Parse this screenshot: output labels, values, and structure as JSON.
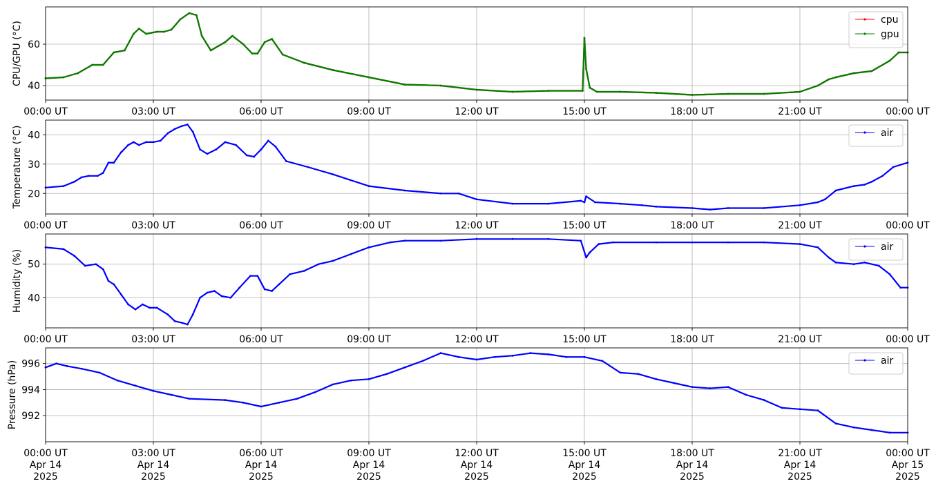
{
  "chart_data": [
    {
      "type": "line",
      "ylabel": "CPU/GPU (°C)",
      "ylim": [
        33,
        78
      ],
      "yticks": [
        40,
        60
      ],
      "x_unit": "hours",
      "xlim": [
        0,
        24
      ],
      "xticks": [
        "00:00 UT",
        "03:00 UT",
        "06:00 UT",
        "09:00 UT",
        "12:00 UT",
        "15:00 UT",
        "18:00 UT",
        "21:00 UT",
        "00:00 UT"
      ],
      "grid": true,
      "legend": "top-right",
      "series": [
        {
          "name": "cpu",
          "color": "#ff0000",
          "x": [
            0,
            0.5,
            0.9,
            1.3,
            1.6,
            1.9,
            2.2,
            2.45,
            2.6,
            2.8,
            3.1,
            3.3,
            3.5,
            3.75,
            4.0,
            4.2,
            4.35,
            4.6,
            5.0,
            5.2,
            5.5,
            5.75,
            5.9,
            6.1,
            6.3,
            6.6,
            7.2,
            8.0,
            9.0,
            10.0,
            11.0,
            12.0,
            13.0,
            14.0,
            14.95,
            15.0,
            15.05,
            15.15,
            15.35,
            16.0,
            17.0,
            18.0,
            19.0,
            20.0,
            21.0,
            21.5,
            21.8,
            22.0,
            22.5,
            23.0,
            23.5,
            23.75,
            24.0
          ],
          "y": [
            43.5,
            44,
            46,
            50,
            50,
            56,
            57,
            65,
            67.5,
            65,
            66,
            66,
            67,
            72,
            75,
            74,
            64,
            57,
            61,
            64,
            60,
            55.5,
            55.5,
            61,
            62.5,
            55,
            51,
            47.5,
            44,
            40.5,
            40,
            38,
            37,
            37.5,
            37.5,
            63,
            48,
            39,
            37,
            37,
            36.5,
            35.5,
            36,
            36,
            37,
            40,
            43,
            44,
            46,
            47,
            52,
            56,
            56
          ]
        },
        {
          "name": "gpu",
          "color": "#008000",
          "x": [
            0,
            0.5,
            0.9,
            1.3,
            1.6,
            1.9,
            2.2,
            2.45,
            2.6,
            2.8,
            3.1,
            3.3,
            3.5,
            3.75,
            4.0,
            4.2,
            4.35,
            4.6,
            5.0,
            5.2,
            5.5,
            5.75,
            5.9,
            6.1,
            6.3,
            6.6,
            7.2,
            8.0,
            9.0,
            10.0,
            11.0,
            12.0,
            13.0,
            14.0,
            14.95,
            15.0,
            15.05,
            15.15,
            15.35,
            16.0,
            17.0,
            18.0,
            19.0,
            20.0,
            21.0,
            21.5,
            21.8,
            22.0,
            22.5,
            23.0,
            23.5,
            23.75,
            24.0
          ],
          "y": [
            43.5,
            44,
            46,
            50,
            50,
            56,
            57,
            65,
            67.5,
            65,
            66,
            66,
            67,
            72,
            75,
            74,
            64,
            57,
            61,
            64,
            60,
            55.5,
            55.5,
            61,
            62.5,
            55,
            51,
            47.5,
            44,
            40.5,
            40,
            38,
            37,
            37.5,
            37.5,
            63,
            48,
            39,
            37,
            37,
            36.5,
            35.5,
            36,
            36,
            37,
            40,
            43,
            44,
            46,
            47,
            52,
            56,
            56
          ]
        }
      ]
    },
    {
      "type": "line",
      "ylabel": "Temperature (°C)",
      "ylim": [
        13,
        45
      ],
      "yticks": [
        20,
        30,
        40
      ],
      "x_unit": "hours",
      "xlim": [
        0,
        24
      ],
      "xticks": [
        "00:00 UT",
        "03:00 UT",
        "06:00 UT",
        "09:00 UT",
        "12:00 UT",
        "15:00 UT",
        "18:00 UT",
        "21:00 UT",
        "00:00 UT"
      ],
      "grid": true,
      "legend": "top-right",
      "series": [
        {
          "name": "air",
          "color": "#0000ff",
          "x": [
            0,
            0.5,
            0.8,
            1.0,
            1.2,
            1.45,
            1.6,
            1.75,
            1.9,
            2.1,
            2.3,
            2.45,
            2.6,
            2.8,
            3.0,
            3.2,
            3.4,
            3.6,
            3.8,
            3.95,
            4.1,
            4.3,
            4.5,
            4.75,
            5.0,
            5.3,
            5.6,
            5.8,
            6.0,
            6.2,
            6.4,
            6.7,
            7.3,
            8.0,
            9.0,
            10.0,
            11.0,
            11.5,
            12.0,
            13.0,
            14.0,
            14.9,
            15.0,
            15.05,
            15.3,
            16.0,
            16.6,
            17.0,
            18.0,
            18.5,
            19.0,
            20.0,
            21.0,
            21.5,
            21.7,
            22.0,
            22.5,
            22.8,
            23.0,
            23.3,
            23.6,
            24.0
          ],
          "y": [
            22,
            22.5,
            24,
            25.5,
            26,
            26,
            27,
            30.5,
            30.5,
            34,
            36.5,
            37.5,
            36.5,
            37.5,
            37.5,
            38,
            40.5,
            42,
            43,
            43.5,
            41,
            35,
            33.5,
            35,
            37.5,
            36.5,
            33,
            32.5,
            35,
            38,
            36,
            31,
            29,
            26.5,
            22.5,
            21,
            20,
            20,
            18,
            16.5,
            16.5,
            17.5,
            17,
            19,
            17,
            16.5,
            16,
            15.5,
            15,
            14.5,
            15,
            15,
            16,
            17,
            18,
            21,
            22.5,
            23,
            24,
            26,
            29,
            30.5
          ]
        }
      ]
    },
    {
      "type": "line",
      "ylabel": "Humidity (%)",
      "ylim": [
        31,
        59
      ],
      "yticks": [
        40,
        50
      ],
      "x_unit": "hours",
      "xlim": [
        0,
        24
      ],
      "xticks": [
        "00:00 UT",
        "03:00 UT",
        "06:00 UT",
        "09:00 UT",
        "12:00 UT",
        "15:00 UT",
        "18:00 UT",
        "21:00 UT",
        "00:00 UT"
      ],
      "grid": true,
      "legend": "top-right",
      "series": [
        {
          "name": "air",
          "color": "#0000ff",
          "x": [
            0,
            0.5,
            0.8,
            1.1,
            1.4,
            1.6,
            1.75,
            1.9,
            2.1,
            2.3,
            2.5,
            2.7,
            2.9,
            3.1,
            3.4,
            3.6,
            3.8,
            3.95,
            4.1,
            4.3,
            4.5,
            4.7,
            4.9,
            5.15,
            5.4,
            5.7,
            5.9,
            6.1,
            6.3,
            6.5,
            6.8,
            7.2,
            7.6,
            8.0,
            8.5,
            9.0,
            9.6,
            10.0,
            11.0,
            12.0,
            13.0,
            14.0,
            14.9,
            15.05,
            15.15,
            15.4,
            15.8,
            17.0,
            18.0,
            19.0,
            20.0,
            21.0,
            21.5,
            21.8,
            22.0,
            22.5,
            22.8,
            23.2,
            23.5,
            23.8,
            24.0
          ],
          "y": [
            55,
            54.5,
            52.5,
            49.5,
            50,
            48.5,
            45,
            44,
            41,
            38,
            36.5,
            38,
            37,
            37,
            35,
            33,
            32.5,
            32,
            35,
            40,
            41.5,
            42,
            40.5,
            40,
            43,
            46.5,
            46.5,
            42.5,
            42,
            44,
            47,
            48,
            50,
            51,
            53,
            55,
            56.5,
            57,
            57,
            57.5,
            57.5,
            57.5,
            57,
            52,
            53.5,
            56,
            56.5,
            56.5,
            56.5,
            56.5,
            56.5,
            56,
            55,
            52,
            50.5,
            50,
            50.5,
            49.5,
            47,
            43,
            43
          ]
        }
      ]
    },
    {
      "type": "line",
      "ylabel": "Pressure (hPa)",
      "ylim": [
        990,
        997.2
      ],
      "yticks": [
        992,
        994,
        996
      ],
      "x_unit": "hours",
      "xlim": [
        0,
        24
      ],
      "xticks": [
        [
          "00:00 UT",
          "Apr 14",
          "2025"
        ],
        [
          "03:00 UT",
          "Apr 14",
          "2025"
        ],
        [
          "06:00 UT",
          "Apr 14",
          "2025"
        ],
        [
          "09:00 UT",
          "Apr 14",
          "2025"
        ],
        [
          "12:00 UT",
          "Apr 14",
          "2025"
        ],
        [
          "15:00 UT",
          "Apr 14",
          "2025"
        ],
        [
          "18:00 UT",
          "Apr 14",
          "2025"
        ],
        [
          "21:00 UT",
          "Apr 14",
          "2025"
        ],
        [
          "00:00 UT",
          "Apr 15",
          "2025"
        ]
      ],
      "grid": true,
      "legend": "top-right",
      "series": [
        {
          "name": "air",
          "color": "#0000ff",
          "x": [
            0,
            0.3,
            0.6,
            1.0,
            1.5,
            2.0,
            2.5,
            3.0,
            3.5,
            4.0,
            5.0,
            5.5,
            6.0,
            6.5,
            7.0,
            7.5,
            8.0,
            8.5,
            9.0,
            9.5,
            10.0,
            10.5,
            11.0,
            11.5,
            12.0,
            12.5,
            13.0,
            13.5,
            14.0,
            14.5,
            15.0,
            15.5,
            16.0,
            16.5,
            17.0,
            17.5,
            18.0,
            18.5,
            19.0,
            19.5,
            20.0,
            20.5,
            21.0,
            21.5,
            22.0,
            22.5,
            23.0,
            23.5,
            24.0
          ],
          "y": [
            995.7,
            996,
            995.8,
            995.6,
            995.3,
            994.7,
            994.3,
            993.9,
            993.6,
            993.3,
            993.2,
            993,
            992.7,
            993,
            993.3,
            993.8,
            994.4,
            994.7,
            994.8,
            995.2,
            995.7,
            996.2,
            996.8,
            996.5,
            996.3,
            996.5,
            996.6,
            996.8,
            996.7,
            996.5,
            996.5,
            996.2,
            995.3,
            995.2,
            994.8,
            994.5,
            994.2,
            994.1,
            994.2,
            993.6,
            993.2,
            992.6,
            992.5,
            992.4,
            991.4,
            991.1,
            990.9,
            990.7,
            990.7
          ]
        }
      ]
    }
  ]
}
